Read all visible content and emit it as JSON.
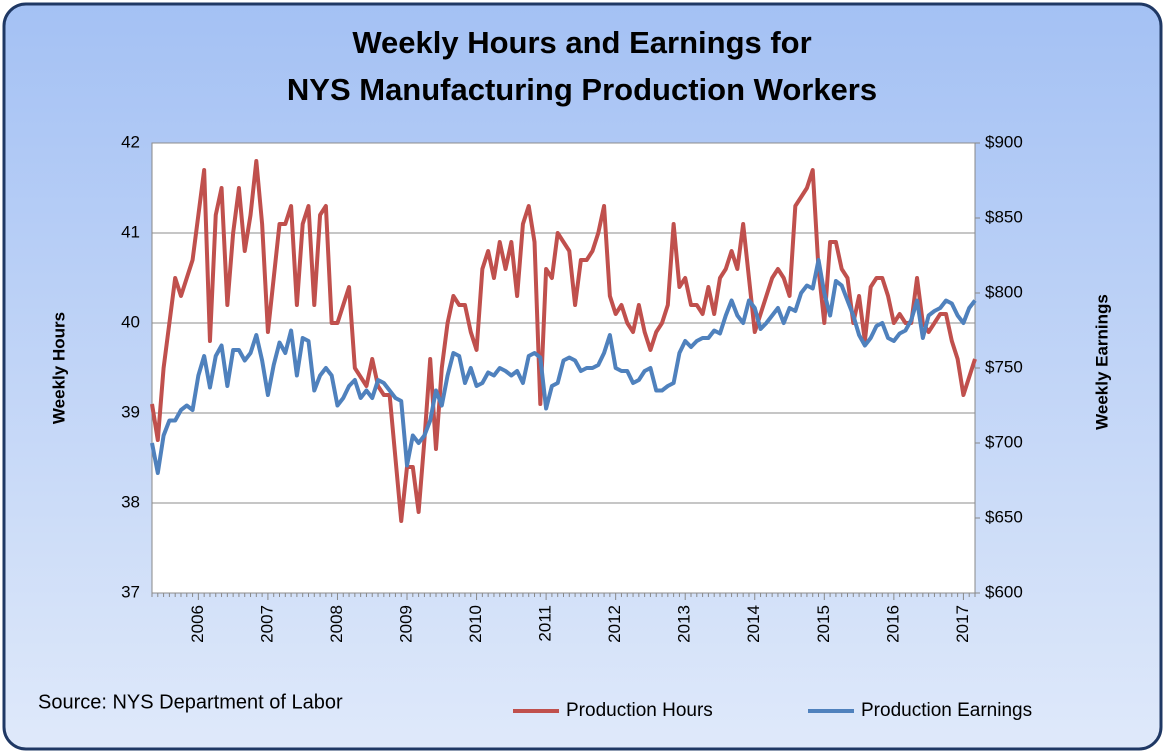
{
  "chart_data": {
    "type": "line",
    "title": "Weekly Hours and Earnings for",
    "subtitle": "NYS Manufacturing  Production Workers",
    "y_label": "Weekly Hours",
    "y2_label": "Weekly Earnings",
    "source": "Source: NYS Department of  Labor",
    "categories": [
      null,
      null,
      null,
      null,
      null,
      null,
      null,
      null,
      "2006",
      null,
      null,
      null,
      null,
      null,
      null,
      null,
      null,
      null,
      null,
      null,
      "2007",
      null,
      null,
      null,
      null,
      null,
      null,
      null,
      null,
      null,
      null,
      null,
      "2008",
      null,
      null,
      null,
      null,
      null,
      null,
      null,
      null,
      null,
      null,
      null,
      "2009",
      null,
      null,
      null,
      null,
      null,
      null,
      null,
      null,
      null,
      null,
      null,
      "2010",
      null,
      null,
      null,
      null,
      null,
      null,
      null,
      null,
      null,
      null,
      null,
      "2011",
      null,
      null,
      null,
      null,
      null,
      null,
      null,
      null,
      null,
      null,
      null,
      "2012",
      null,
      null,
      null,
      null,
      null,
      null,
      null,
      null,
      null,
      null,
      null,
      "2013",
      null,
      null,
      null,
      null,
      null,
      null,
      null,
      null,
      null,
      null,
      null,
      "2014",
      null,
      null,
      null,
      null,
      null,
      null,
      null,
      null,
      null,
      null,
      null,
      "2015",
      null,
      null,
      null,
      null,
      null,
      null,
      null,
      null,
      null,
      null,
      null,
      "2016",
      null,
      null,
      null,
      null,
      null,
      null,
      null,
      null,
      null,
      null,
      null,
      "2017",
      null,
      null
    ],
    "series": [
      {
        "name": "Production Hours",
        "color": "#c0504d",
        "axis": "y",
        "values": [
          39.1,
          38.7,
          39.5,
          40.0,
          40.5,
          40.3,
          40.5,
          40.7,
          41.2,
          41.7,
          39.8,
          41.2,
          41.5,
          40.2,
          41.0,
          41.5,
          40.8,
          41.2,
          41.8,
          41.1,
          39.9,
          40.5,
          41.1,
          41.1,
          41.3,
          40.2,
          41.1,
          41.3,
          40.2,
          41.2,
          41.3,
          40.0,
          40.0,
          40.2,
          40.4,
          39.5,
          39.4,
          39.3,
          39.6,
          39.3,
          39.2,
          39.2,
          38.5,
          37.8,
          38.4,
          38.4,
          37.9,
          38.7,
          39.6,
          38.6,
          39.5,
          40.0,
          40.3,
          40.2,
          40.2,
          39.9,
          39.7,
          40.6,
          40.8,
          40.5,
          40.9,
          40.6,
          40.9,
          40.3,
          41.1,
          41.3,
          40.9,
          39.1,
          40.6,
          40.5,
          41.0,
          40.9,
          40.8,
          40.2,
          40.7,
          40.7,
          40.8,
          41.0,
          41.3,
          40.3,
          40.1,
          40.2,
          40.0,
          39.9,
          40.2,
          39.9,
          39.7,
          39.9,
          40.0,
          40.2,
          41.1,
          40.4,
          40.5,
          40.2,
          40.2,
          40.1,
          40.4,
          40.1,
          40.5,
          40.6,
          40.8,
          40.6,
          41.1,
          40.5,
          39.9,
          40.1,
          40.3,
          40.5,
          40.6,
          40.5,
          40.3,
          41.3,
          41.4,
          41.5,
          41.7,
          40.6,
          40.0,
          40.9,
          40.9,
          40.6,
          40.5,
          40.0,
          40.3,
          39.8,
          40.4,
          40.5,
          40.5,
          40.3,
          40.0,
          40.1,
          40.0,
          40.0,
          40.5,
          40.0,
          39.9,
          40.0,
          40.1,
          40.1,
          39.8,
          39.6,
          39.2,
          39.4,
          39.6
        ]
      },
      {
        "name": "Production Earnings",
        "color": "#4f81bd",
        "axis": "y2",
        "values": [
          700,
          680,
          705,
          715,
          715,
          722,
          725,
          722,
          745,
          758,
          737,
          758,
          765,
          738,
          762,
          762,
          755,
          760,
          772,
          755,
          732,
          752,
          767,
          760,
          775,
          745,
          770,
          768,
          735,
          745,
          750,
          745,
          725,
          730,
          738,
          742,
          730,
          735,
          730,
          742,
          740,
          735,
          730,
          728,
          685,
          705,
          700,
          705,
          715,
          735,
          725,
          745,
          760,
          758,
          740,
          750,
          738,
          740,
          747,
          745,
          750,
          748,
          745,
          748,
          740,
          758,
          760,
          757,
          723,
          738,
          740,
          755,
          757,
          755,
          748,
          750,
          750,
          752,
          760,
          772,
          750,
          748,
          748,
          740,
          742,
          748,
          750,
          735,
          735,
          738,
          740,
          760,
          768,
          764,
          768,
          770,
          770,
          775,
          773,
          785,
          795,
          785,
          780,
          795,
          790,
          776,
          780,
          785,
          790,
          780,
          790,
          788,
          800,
          805,
          803,
          822,
          800,
          785,
          808,
          805,
          795,
          785,
          772,
          765,
          770,
          778,
          780,
          770,
          768,
          773,
          775,
          782,
          795,
          770,
          785,
          788,
          790,
          795,
          793,
          785,
          780,
          790,
          795
        ]
      }
    ],
    "ylim": [
      37,
      42
    ],
    "yticks": [
      37,
      38,
      39,
      40,
      41,
      42
    ],
    "y2lim": [
      600,
      900
    ],
    "y2ticks": [
      {
        "value": 600,
        "label": "$600"
      },
      {
        "value": 650,
        "label": "$650"
      },
      {
        "value": 700,
        "label": "$700"
      },
      {
        "value": 750,
        "label": "$750"
      },
      {
        "value": 800,
        "label": "$800"
      },
      {
        "value": 850,
        "label": "$850"
      },
      {
        "value": 900,
        "label": "$900"
      }
    ],
    "grid": true
  }
}
